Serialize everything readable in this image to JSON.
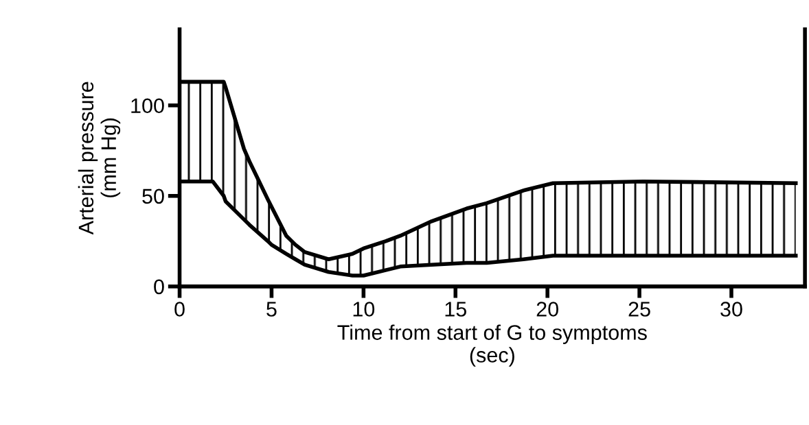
{
  "chart_data": {
    "type": "line",
    "xlabel": "Time from start of G to symptoms\n(sec)",
    "ylabel": "Arterial pressure\n(mm Hg)",
    "x": [
      0,
      1.8,
      2.4,
      2.5,
      3.5,
      3.8,
      4.8,
      5,
      5.8,
      6.3,
      6.8,
      8.1,
      9.4,
      10,
      11.2,
      12,
      13.7,
      15.6,
      16.7,
      18.7,
      20.3,
      25.2,
      33.5
    ],
    "series": [
      {
        "color": "#000000",
        "values": [
          113,
          113,
          113,
          110,
          76,
          69,
          48,
          44,
          28,
          23,
          19,
          15,
          18,
          21,
          25,
          28,
          36,
          43,
          46,
          53,
          57,
          58,
          57
        ],
        "lower": [
          58,
          58,
          50,
          47,
          37,
          34,
          25,
          23,
          18,
          15,
          12,
          8,
          6,
          6,
          9,
          11,
          12,
          13,
          13,
          15,
          17,
          17,
          17
        ],
        "upper": [
          113,
          113,
          113,
          110,
          76,
          69,
          48,
          44,
          28,
          23,
          19,
          15,
          18,
          21,
          25,
          28,
          36,
          43,
          46,
          53,
          57,
          58,
          57
        ]
      },
      {
        "color": "#000000",
        "values": [
          58,
          58,
          50,
          47,
          37,
          34,
          25,
          23,
          18,
          15,
          12,
          8,
          6,
          6,
          9,
          11,
          12,
          13,
          13,
          15,
          17,
          17,
          17
        ]
      }
    ],
    "xlim": [
      0,
      34
    ],
    "ylim": [
      0,
      142
    ],
    "xticks": [
      0,
      5,
      10,
      15,
      20,
      25,
      30
    ],
    "yticks": [
      0,
      50,
      100
    ],
    "grid": false,
    "legend": false,
    "marker": "none",
    "line_style": "solid"
  }
}
